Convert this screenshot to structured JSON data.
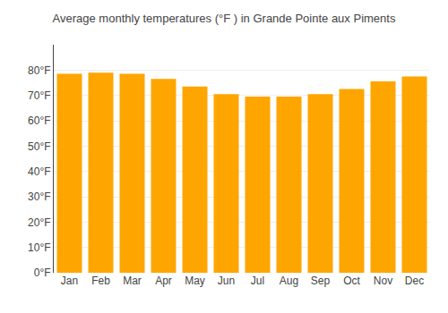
{
  "chart_data": {
    "type": "bar",
    "title": "Average monthly temperatures (°F ) in Grande Pointe aux Piments",
    "categories": [
      "Jan",
      "Feb",
      "Mar",
      "Apr",
      "May",
      "Jun",
      "Jul",
      "Aug",
      "Sep",
      "Oct",
      "Nov",
      "Dec"
    ],
    "values": [
      78.5,
      79.0,
      78.5,
      76.5,
      73.5,
      70.5,
      69.5,
      69.5,
      70.5,
      72.5,
      75.5,
      77.5
    ],
    "color": "#FFA500",
    "ylim": [
      0,
      90
    ],
    "yticks": [
      {
        "value": 0,
        "label": "0°F"
      },
      {
        "value": 10,
        "label": "10°F"
      },
      {
        "value": 20,
        "label": "20°F"
      },
      {
        "value": 30,
        "label": "30°F"
      },
      {
        "value": 40,
        "label": "40°F"
      },
      {
        "value": 50,
        "label": "50°F"
      },
      {
        "value": 60,
        "label": "60°F"
      },
      {
        "value": 70,
        "label": "70°F"
      },
      {
        "value": 80,
        "label": "80°F"
      }
    ],
    "grid": true
  }
}
